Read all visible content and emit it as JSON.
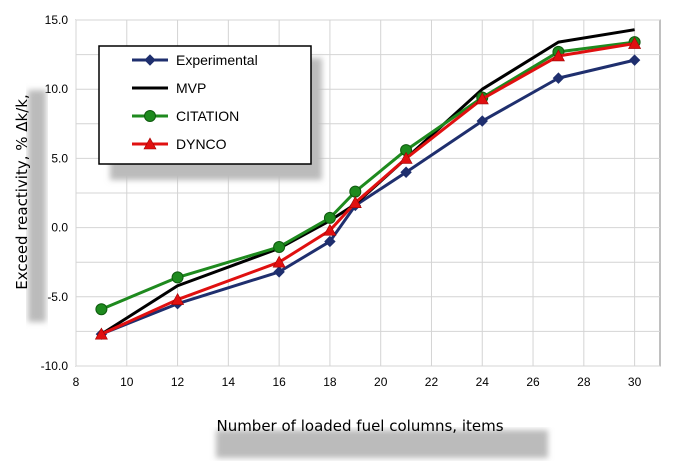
{
  "chart_data": {
    "type": "line",
    "xlabel": "Number of loaded fuel columns, items",
    "ylabel": "Exceed reactivity, % Δk/k,",
    "xlim": [
      8,
      31
    ],
    "ylim": [
      -10,
      15
    ],
    "x_ticks": [
      8,
      10,
      12,
      14,
      16,
      18,
      20,
      22,
      24,
      26,
      28,
      30
    ],
    "x_tick_labels": [
      "8",
      "10",
      "12",
      "14",
      "16",
      "18",
      "20",
      "22",
      "24",
      "26",
      "28",
      "30"
    ],
    "y_ticks": [
      -10,
      -5,
      0,
      5,
      10,
      15
    ],
    "y_tick_labels": [
      "-10.0",
      "-5.0",
      "0.0",
      "5.0",
      "10.0",
      "15.0"
    ],
    "grid": true,
    "legend_position": "top-left",
    "series": [
      {
        "name": "Experimental",
        "color": "#1f2f6e",
        "marker": "diamond",
        "x": [
          9,
          12,
          16,
          18,
          19,
          21,
          24,
          27,
          30
        ],
        "y": [
          -7.7,
          -5.5,
          -3.2,
          -1.0,
          1.6,
          4.0,
          7.7,
          10.8,
          12.1
        ]
      },
      {
        "name": "MVP",
        "color": "#000000",
        "marker": "none",
        "x": [
          9,
          12,
          16,
          18,
          19,
          21,
          24,
          27,
          30
        ],
        "y": [
          -7.7,
          -4.2,
          -1.5,
          0.5,
          1.7,
          5.0,
          10.0,
          13.4,
          14.3
        ]
      },
      {
        "name": "CITATION",
        "color": "#1e8a1e",
        "marker": "circle",
        "x": [
          9,
          12,
          16,
          18,
          19,
          21,
          24,
          27,
          30
        ],
        "y": [
          -5.9,
          -3.6,
          -1.4,
          0.7,
          2.6,
          5.6,
          9.4,
          12.7,
          13.4
        ]
      },
      {
        "name": "DYNCO",
        "color": "#e01010",
        "marker": "triangle",
        "x": [
          9,
          12,
          16,
          18,
          19,
          21,
          24,
          27,
          30
        ],
        "y": [
          -7.7,
          -5.2,
          -2.5,
          -0.2,
          1.8,
          5.0,
          9.3,
          12.4,
          13.3
        ]
      }
    ]
  }
}
